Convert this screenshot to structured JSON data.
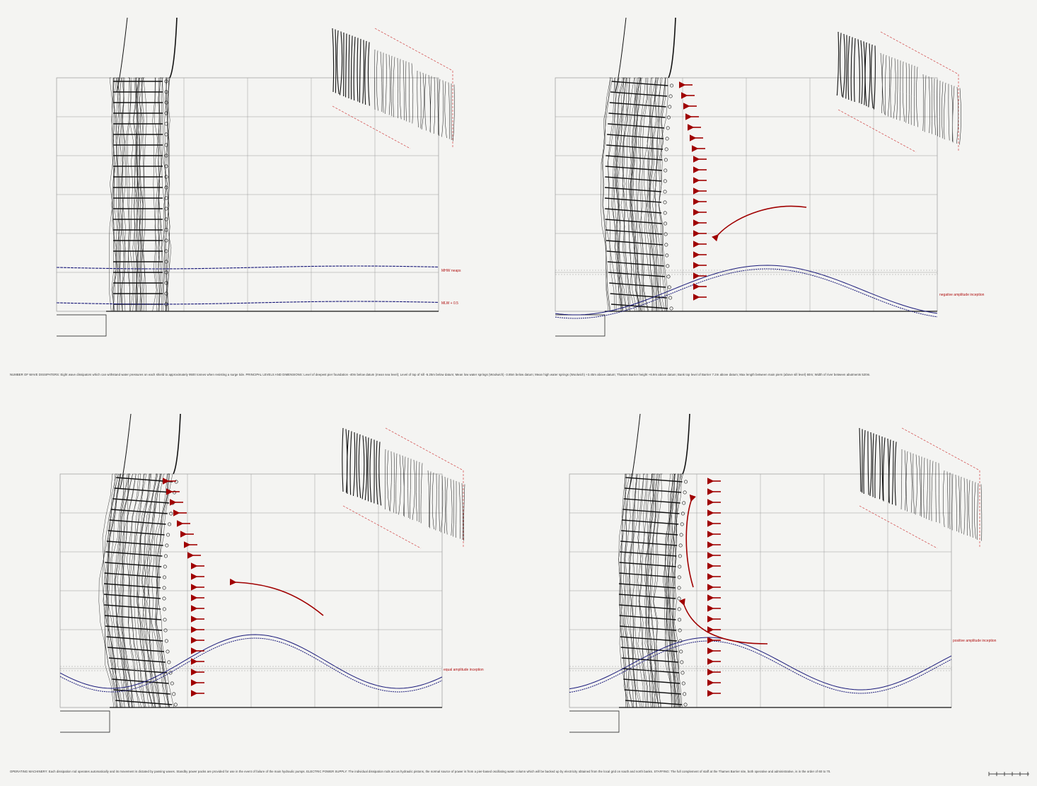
{
  "captions": {
    "top": "NUMBER OF WAVE DISSIPATERS: Eight wave dissipators which can withstand water pressures on each shield to approximately 9500 tonnes when resisting a surge tide.   PRINCIPAL LEVELS AND DIMENSIONS:  Level of deepest pier foundation -40m below datum (mean sea level);  Level of top of sill -5.25m below datum;  Mean low water springs (Woolwich) -3.85m below datum;  Mean high water springs (Woolwich) +3.45m above datum;  Thames Barrier height +6.9m above datum; Bank top level of Barrier 7.2m above datum;  Max length between main piers (above sill level) 60m;  Width of river between abutments 520m.",
    "bottom": "OPERATING MACHINERY: Each dissipation rod operates automatically and its movement is dictated by passing waves. Standby power packs are provided for use in the event of failure of the main hydraulic pumps.   ELECTRIC POWER SUPPLY: The individual dissipation rods act as hydraulic pistons, the normal source of power is from a pier-based oscillating water column which will be backed up by electricity obtained from the local grid on south and north banks.   STAFFING: The full complement of staff at the Thames Barrier site, both operative and administrative, is in the order of 60 to 70."
  },
  "panels": [
    {
      "labels": [
        "MHW neaps",
        "MLW + 0.5"
      ],
      "wave": "flat",
      "arrows": 0
    },
    {
      "labels": [
        "negative amplitude inception"
      ],
      "wave": "negative",
      "arrows": 21
    },
    {
      "labels": [
        "equal amplitude inception"
      ],
      "wave": "equal",
      "arrows": 21
    },
    {
      "labels": [
        "positive amplitude inception"
      ],
      "wave": "positive",
      "arrows": 21
    }
  ],
  "colors": {
    "arrow": "#a00000",
    "wave": "#1a1a7a",
    "grid": "#9a9a9a",
    "ink": "#111111",
    "iso_guide": "#d04040"
  }
}
